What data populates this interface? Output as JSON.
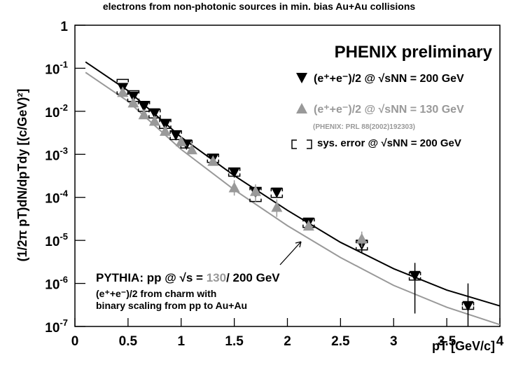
{
  "chart_data": {
    "type": "scatter",
    "title": "electrons from non-photonic sources in min. bias Au+Au collisions",
    "xlabel": "pT [GeV/c]",
    "ylabel": "(1/2π pT)dN/dpTdy [(c/GeV)²]",
    "log_y": true,
    "xlim": [
      0,
      4
    ],
    "ylim": [
      1e-07,
      1
    ],
    "xticks": [
      0,
      0.5,
      1,
      1.5,
      2,
      2.5,
      3,
      3.5,
      4
    ],
    "yticks": [
      {
        "value": 1,
        "label": "1"
      },
      {
        "value": 0.1,
        "label": "10",
        "exponent": "-1"
      },
      {
        "value": 0.01,
        "label": "10",
        "exponent": "-2"
      },
      {
        "value": 0.001,
        "label": "10",
        "exponent": "-3"
      },
      {
        "value": 0.0001,
        "label": "10",
        "exponent": "-4"
      },
      {
        "value": 1e-05,
        "label": "10",
        "exponent": "-5"
      },
      {
        "value": 1e-06,
        "label": "10",
        "exponent": "-6"
      },
      {
        "value": 1e-07,
        "label": "10",
        "exponent": "-7"
      }
    ],
    "annotations": {
      "experiment": "PHENIX preliminary",
      "reference": "(PHENIX: PRL 88(2002)192303)",
      "sys_label": "sys. error @ √sNN = 200 GeV",
      "pythia_prefix": "PYTHIA: pp @ √s = ",
      "pythia_130": "130",
      "pythia_200": "/ 200 GeV",
      "charm_line1": "(e⁺+e⁻)/2 from charm with",
      "charm_line2": "binary scaling from pp to Au+Au"
    },
    "series": [
      {
        "name": "(e⁺+e⁻)/2 @ √sNN = 200 GeV",
        "color": "#000000",
        "marker": "triangle-down",
        "x": [
          0.45,
          0.55,
          0.65,
          0.75,
          0.85,
          0.95,
          1.05,
          1.3,
          1.5,
          1.7,
          1.9,
          2.2,
          2.7,
          3.2,
          3.7
        ],
        "values": [
          0.035,
          0.022,
          0.013,
          0.009,
          0.005,
          0.0028,
          0.0017,
          0.0008,
          0.00038,
          0.00013,
          0.00013,
          2.6e-05,
          8e-06,
          1.5e-06,
          3e-07
        ],
        "err_low": [
          null,
          null,
          null,
          null,
          null,
          null,
          null,
          null,
          null,
          null,
          null,
          null,
          5e-06,
          2e-07,
          1e-07
        ],
        "err_high": [
          null,
          null,
          null,
          null,
          null,
          null,
          null,
          null,
          null,
          null,
          null,
          null,
          1.1e-05,
          3e-06,
          1e-06
        ],
        "sys_low": [
          0.025,
          0.017,
          0.01,
          0.007,
          0.004,
          0.0022,
          0.0014,
          0.00065,
          0.00031,
          8e-05,
          0.0001,
          2e-05,
          6e-06,
          1.2e-06,
          2.5e-07
        ],
        "sys_high": [
          0.055,
          0.03,
          0.017,
          0.011,
          0.0065,
          0.0035,
          0.0021,
          0.001,
          0.00048,
          0.00017,
          0.00016,
          3.2e-05,
          1e-05,
          1.8e-06,
          3.6e-07
        ]
      },
      {
        "name": "(e⁺+e⁻)/2 @ √sNN = 130 GeV",
        "color": "#999999",
        "marker": "triangle-up",
        "x": [
          0.45,
          0.55,
          0.65,
          0.75,
          0.85,
          1.0,
          1.1,
          1.3,
          1.5,
          1.7,
          1.9,
          2.2,
          2.7
        ],
        "values": [
          0.028,
          0.016,
          0.0085,
          0.006,
          0.0035,
          0.002,
          0.0013,
          0.0007,
          0.00017,
          0.00014,
          6e-05,
          2.2e-05,
          1.1e-05
        ],
        "err_low": [
          null,
          null,
          null,
          null,
          null,
          null,
          null,
          null,
          0.00011,
          8e-05,
          3.5e-05,
          null,
          7e-06
        ],
        "err_high": [
          null,
          null,
          null,
          null,
          null,
          null,
          null,
          null,
          0.00025,
          0.0002,
          9e-05,
          null,
          1.6e-05
        ]
      }
    ],
    "curves": [
      {
        "color": "#000000",
        "x": [
          0.1,
          0.5,
          1,
          1.5,
          2,
          2.5,
          3,
          3.5,
          4
        ],
        "values": [
          0.14,
          0.03,
          0.0025,
          0.00032,
          5e-05,
          9e-06,
          2.2e-06,
          7e-07,
          3e-07
        ]
      },
      {
        "color": "#999999",
        "x": [
          0.1,
          0.5,
          1,
          1.5,
          2,
          2.5,
          3,
          3.5,
          4
        ],
        "values": [
          0.08,
          0.017,
          0.0013,
          0.00015,
          2.2e-05,
          4e-06,
          9e-07,
          2.8e-07,
          1.1e-07
        ]
      }
    ]
  }
}
